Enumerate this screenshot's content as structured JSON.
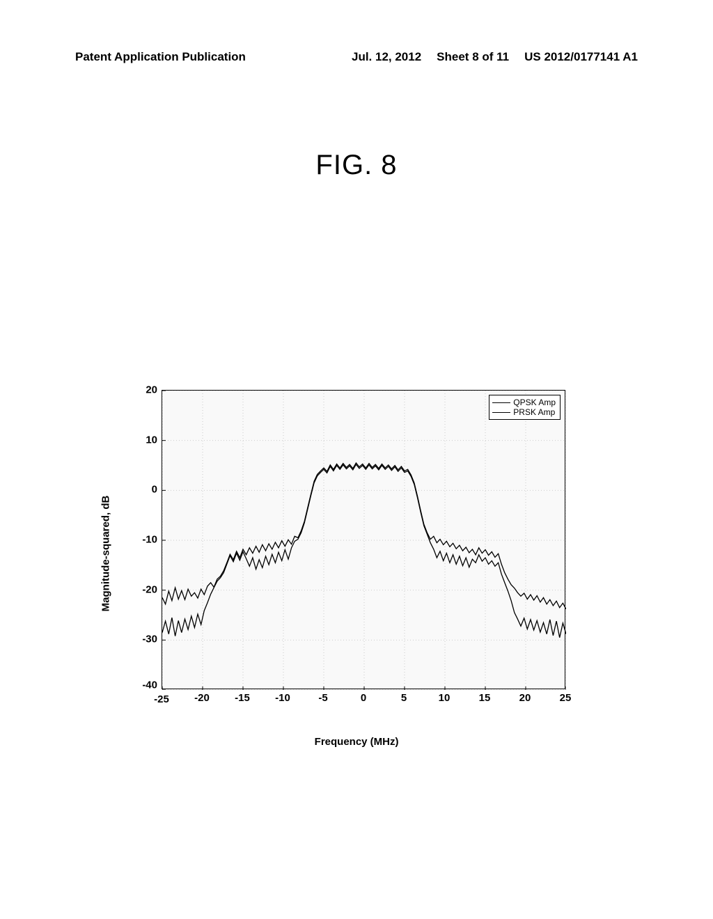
{
  "header": {
    "left": "Patent Application Publication",
    "date": "Jul. 12, 2012",
    "sheet": "Sheet 8 of 11",
    "docnum": "US 2012/0177141 A1"
  },
  "figure": {
    "title": "FIG. 8"
  },
  "chart": {
    "type": "line",
    "xlabel": "Frequency (MHz)",
    "ylabel": "Magnitude-squared, dB",
    "xlim": [
      -25,
      25
    ],
    "ylim": [
      -40,
      20
    ],
    "xticks": [
      -25,
      -20,
      -15,
      -10,
      -5,
      0,
      5,
      10,
      15,
      20,
      25
    ],
    "yticks": [
      -40,
      -30,
      -20,
      -10,
      0,
      10,
      20
    ],
    "xtick_labels": [
      "-25",
      "-20",
      "-15",
      "-10",
      "-5",
      "0",
      "5",
      "10",
      "15",
      "20",
      "25"
    ],
    "ytick_labels": [
      "-40",
      "-30",
      "-20",
      "-10",
      "0",
      "10",
      "20"
    ],
    "background_color": "#f9f9f9",
    "grid_color": "#cccccc",
    "line_color": "#000000",
    "line_width": 1.3,
    "legend": {
      "items": [
        "QPSK Amp",
        "PRSK Amp"
      ],
      "position": "top-right"
    },
    "corner_label": "-40\n-25",
    "series": {
      "upper": [
        [
          -25,
          -21.5
        ],
        [
          -24.6,
          -22.8
        ],
        [
          -24.2,
          -20.2
        ],
        [
          -23.8,
          -22.1
        ],
        [
          -23.4,
          -19.5
        ],
        [
          -23,
          -21.8
        ],
        [
          -22.6,
          -20.1
        ],
        [
          -22.2,
          -21.9
        ],
        [
          -21.8,
          -19.8
        ],
        [
          -21.4,
          -21.2
        ],
        [
          -21,
          -20.5
        ],
        [
          -20.6,
          -21.6
        ],
        [
          -20.2,
          -19.8
        ],
        [
          -19.8,
          -20.9
        ],
        [
          -19.4,
          -19.2
        ],
        [
          -19,
          -18.5
        ],
        [
          -18.6,
          -19.4
        ],
        [
          -18.2,
          -17.8
        ],
        [
          -17.8,
          -17.2
        ],
        [
          -17.4,
          -16.1
        ],
        [
          -17,
          -14.5
        ],
        [
          -16.6,
          -12.8
        ],
        [
          -16.2,
          -13.9
        ],
        [
          -15.8,
          -12.2
        ],
        [
          -15.4,
          -13.5
        ],
        [
          -15,
          -11.8
        ],
        [
          -14.6,
          -12.9
        ],
        [
          -14.2,
          -11.5
        ],
        [
          -13.8,
          -12.6
        ],
        [
          -13.4,
          -11.2
        ],
        [
          -13,
          -12.4
        ],
        [
          -12.6,
          -10.9
        ],
        [
          -12.2,
          -12.1
        ],
        [
          -11.8,
          -10.7
        ],
        [
          -11.4,
          -11.8
        ],
        [
          -11,
          -10.4
        ],
        [
          -10.6,
          -11.5
        ],
        [
          -10.2,
          -10.1
        ],
        [
          -9.8,
          -11.2
        ],
        [
          -9.4,
          -9.9
        ],
        [
          -9,
          -10.8
        ],
        [
          -8.6,
          -9.2
        ],
        [
          -8.2,
          -9.5
        ],
        [
          -7.8,
          -8.1
        ],
        [
          -7.4,
          -6.2
        ],
        [
          -7,
          -3.5
        ],
        [
          -6.6,
          -0.8
        ],
        [
          -6.2,
          1.8
        ],
        [
          -5.8,
          3.2
        ],
        [
          -5.4,
          3.9
        ],
        [
          -5,
          4.5
        ],
        [
          -4.6,
          3.8
        ],
        [
          -4.2,
          5.1
        ],
        [
          -3.8,
          4.2
        ],
        [
          -3.4,
          5.3
        ],
        [
          -3,
          4.5
        ],
        [
          -2.6,
          5.4
        ],
        [
          -2.2,
          4.6
        ],
        [
          -1.8,
          5.2
        ],
        [
          -1.4,
          4.4
        ],
        [
          -1,
          5.5
        ],
        [
          -0.6,
          4.7
        ],
        [
          -0.2,
          5.3
        ],
        [
          0.2,
          4.5
        ],
        [
          0.6,
          5.4
        ],
        [
          1,
          4.6
        ],
        [
          1.4,
          5.2
        ],
        [
          1.8,
          4.4
        ],
        [
          2.2,
          5.3
        ],
        [
          2.6,
          4.5
        ],
        [
          3,
          5.1
        ],
        [
          3.4,
          4.3
        ],
        [
          3.8,
          5.0
        ],
        [
          4.2,
          4.1
        ],
        [
          4.6,
          4.8
        ],
        [
          5,
          3.9
        ],
        [
          5.4,
          4.2
        ],
        [
          5.8,
          3.1
        ],
        [
          6.2,
          1.5
        ],
        [
          6.6,
          -1.2
        ],
        [
          7,
          -4.1
        ],
        [
          7.4,
          -6.8
        ],
        [
          7.8,
          -8.5
        ],
        [
          8.2,
          -9.8
        ],
        [
          8.6,
          -9.2
        ],
        [
          9,
          -10.5
        ],
        [
          9.4,
          -9.8
        ],
        [
          9.8,
          -10.9
        ],
        [
          10.2,
          -10.2
        ],
        [
          10.6,
          -11.3
        ],
        [
          11,
          -10.6
        ],
        [
          11.4,
          -11.7
        ],
        [
          11.8,
          -11.0
        ],
        [
          12.2,
          -12.1
        ],
        [
          12.6,
          -11.4
        ],
        [
          13,
          -12.5
        ],
        [
          13.4,
          -11.8
        ],
        [
          13.8,
          -12.9
        ],
        [
          14.2,
          -11.5
        ],
        [
          14.6,
          -12.6
        ],
        [
          15,
          -11.9
        ],
        [
          15.4,
          -13.0
        ],
        [
          15.8,
          -12.3
        ],
        [
          16.2,
          -13.4
        ],
        [
          16.6,
          -12.7
        ],
        [
          17,
          -14.8
        ],
        [
          17.4,
          -16.5
        ],
        [
          17.8,
          -17.8
        ],
        [
          18.2,
          -18.9
        ],
        [
          18.6,
          -19.6
        ],
        [
          19,
          -20.5
        ],
        [
          19.4,
          -21.2
        ],
        [
          19.8,
          -20.6
        ],
        [
          20.2,
          -21.8
        ],
        [
          20.6,
          -20.9
        ],
        [
          21,
          -22.0
        ],
        [
          21.4,
          -21.1
        ],
        [
          21.8,
          -22.4
        ],
        [
          22.2,
          -21.5
        ],
        [
          22.6,
          -22.8
        ],
        [
          23,
          -21.9
        ],
        [
          23.4,
          -23.1
        ],
        [
          23.8,
          -22.2
        ],
        [
          24.2,
          -23.5
        ],
        [
          24.6,
          -22.6
        ],
        [
          25,
          -23.8
        ]
      ],
      "lower": [
        [
          -25,
          -28.5
        ],
        [
          -24.6,
          -26.2
        ],
        [
          -24.2,
          -28.8
        ],
        [
          -23.8,
          -25.5
        ],
        [
          -23.4,
          -29.2
        ],
        [
          -23,
          -26.1
        ],
        [
          -22.6,
          -28.5
        ],
        [
          -22.2,
          -25.8
        ],
        [
          -21.8,
          -27.9
        ],
        [
          -21.4,
          -25.2
        ],
        [
          -21,
          -27.5
        ],
        [
          -20.6,
          -24.8
        ],
        [
          -20.2,
          -26.9
        ],
        [
          -19.8,
          -24.1
        ],
        [
          -19.4,
          -22.5
        ],
        [
          -19,
          -20.8
        ],
        [
          -18.6,
          -19.5
        ],
        [
          -18.2,
          -18.2
        ],
        [
          -17.8,
          -17.5
        ],
        [
          -17.4,
          -16.5
        ],
        [
          -17,
          -14.8
        ],
        [
          -16.6,
          -13.1
        ],
        [
          -16.2,
          -14.3
        ],
        [
          -15.8,
          -12.6
        ],
        [
          -15.4,
          -14.0
        ],
        [
          -15,
          -12.3
        ],
        [
          -14.6,
          -13.7
        ],
        [
          -14.2,
          -15.2
        ],
        [
          -13.8,
          -13.5
        ],
        [
          -13.4,
          -15.8
        ],
        [
          -13,
          -13.9
        ],
        [
          -12.6,
          -15.5
        ],
        [
          -12.2,
          -13.2
        ],
        [
          -11.8,
          -14.9
        ],
        [
          -11.4,
          -12.8
        ],
        [
          -11,
          -14.5
        ],
        [
          -10.6,
          -12.4
        ],
        [
          -10.2,
          -14.1
        ],
        [
          -9.8,
          -11.9
        ],
        [
          -9.4,
          -13.8
        ],
        [
          -9,
          -11.5
        ],
        [
          -8.6,
          -10.2
        ],
        [
          -8.2,
          -9.8
        ],
        [
          -7.8,
          -8.5
        ],
        [
          -7.4,
          -6.5
        ],
        [
          -7,
          -3.8
        ],
        [
          -6.6,
          -1.1
        ],
        [
          -6.2,
          1.5
        ],
        [
          -5.8,
          2.9
        ],
        [
          -5.4,
          3.6
        ],
        [
          -5,
          4.2
        ],
        [
          -4.6,
          3.5
        ],
        [
          -4.2,
          4.8
        ],
        [
          -3.8,
          3.9
        ],
        [
          -3.4,
          5.0
        ],
        [
          -3,
          4.2
        ],
        [
          -2.6,
          5.1
        ],
        [
          -2.2,
          4.3
        ],
        [
          -1.8,
          4.9
        ],
        [
          -1.4,
          4.1
        ],
        [
          -1,
          5.2
        ],
        [
          -0.6,
          4.4
        ],
        [
          -0.2,
          5.0
        ],
        [
          0.2,
          4.2
        ],
        [
          0.6,
          5.1
        ],
        [
          1,
          4.3
        ],
        [
          1.4,
          4.9
        ],
        [
          1.8,
          4.1
        ],
        [
          2.2,
          5.0
        ],
        [
          2.6,
          4.2
        ],
        [
          3,
          4.8
        ],
        [
          3.4,
          4.0
        ],
        [
          3.8,
          4.7
        ],
        [
          4.2,
          3.8
        ],
        [
          4.6,
          4.5
        ],
        [
          5,
          3.6
        ],
        [
          5.4,
          3.9
        ],
        [
          5.8,
          2.8
        ],
        [
          6.2,
          1.2
        ],
        [
          6.6,
          -1.5
        ],
        [
          7,
          -4.4
        ],
        [
          7.4,
          -7.1
        ],
        [
          7.8,
          -8.8
        ],
        [
          8.2,
          -10.5
        ],
        [
          8.6,
          -11.8
        ],
        [
          9,
          -13.5
        ],
        [
          9.4,
          -12.2
        ],
        [
          9.8,
          -14.1
        ],
        [
          10.2,
          -12.6
        ],
        [
          10.6,
          -14.5
        ],
        [
          11,
          -12.9
        ],
        [
          11.4,
          -14.8
        ],
        [
          11.8,
          -13.2
        ],
        [
          12.2,
          -15.1
        ],
        [
          12.6,
          -13.5
        ],
        [
          13,
          -15.4
        ],
        [
          13.4,
          -13.8
        ],
        [
          13.8,
          -14.5
        ],
        [
          14.2,
          -12.9
        ],
        [
          14.6,
          -14.2
        ],
        [
          15,
          -13.5
        ],
        [
          15.4,
          -14.8
        ],
        [
          15.8,
          -14.1
        ],
        [
          16.2,
          -15.2
        ],
        [
          16.6,
          -14.5
        ],
        [
          17,
          -16.8
        ],
        [
          17.4,
          -18.5
        ],
        [
          17.8,
          -20.2
        ],
        [
          18.2,
          -22.1
        ],
        [
          18.6,
          -24.5
        ],
        [
          19,
          -25.8
        ],
        [
          19.4,
          -27.2
        ],
        [
          19.8,
          -25.6
        ],
        [
          20.2,
          -27.8
        ],
        [
          20.6,
          -25.9
        ],
        [
          21,
          -28.0
        ],
        [
          21.4,
          -26.1
        ],
        [
          21.8,
          -28.4
        ],
        [
          22.2,
          -26.5
        ],
        [
          22.6,
          -28.8
        ],
        [
          23,
          -25.9
        ],
        [
          23.4,
          -29.1
        ],
        [
          23.8,
          -26.2
        ],
        [
          24.2,
          -29.5
        ],
        [
          24.6,
          -26.6
        ],
        [
          25,
          -28.8
        ]
      ]
    }
  }
}
